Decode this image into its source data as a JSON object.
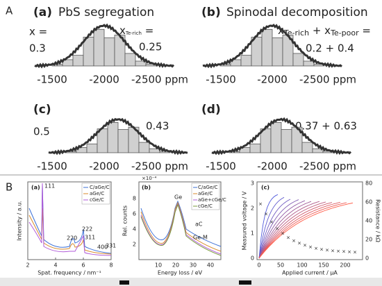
{
  "section_labels": [
    "A",
    "B"
  ],
  "hist_axis": [
    "-1500",
    "-2000",
    "-2500 ppm"
  ],
  "panel_a": {
    "label": "(a)",
    "title": "PbS segregation",
    "x_label": "x =",
    "x_value": "0.3",
    "te_x": "x",
    "te_sub": "Te-rich",
    "te_eq": " =",
    "te_value": "0.25"
  },
  "panel_b": {
    "label": "(b)",
    "title": "Spinodal decomposition",
    "x1": "x",
    "sub1": "Te-rich",
    "plus": " + x",
    "sub2": "Te-poor",
    "eq": " =",
    "value": "0.2 + 0.4"
  },
  "panel_c": {
    "label": "(c)",
    "left_value": "0.5",
    "right_value": "0.43"
  },
  "panel_d": {
    "label": "(d)",
    "value": "0.37 + 0.63"
  },
  "plot_a": {
    "label": "(a)",
    "ylabel": "Intensity / a.u.",
    "xlabel": "Spat. frequency / nm⁻¹",
    "xticks": [
      2,
      4,
      6,
      8
    ],
    "legend": [
      "C/aGe/C",
      "aGe/C",
      "cGe/C"
    ],
    "peaks": [
      "111",
      "220",
      "222",
      "311",
      "400",
      "331"
    ]
  },
  "plot_b": {
    "label": "(b)",
    "scale": "×10⁻⁴",
    "ylabel": "Rel. counts",
    "xlabel": "Energy loss / eV",
    "yticks": [
      2,
      4,
      6,
      8
    ],
    "xticks": [
      10,
      20,
      30,
      40
    ],
    "legend": [
      "C/aGe/C",
      "aGe/C",
      "aGe+cGe/C",
      "cGe/C"
    ],
    "notes": [
      "Ge",
      "aC",
      "Ge-M"
    ]
  },
  "plot_c": {
    "label": "(c)",
    "ylabel": "Measured voltage / V",
    "y2label": "Resistance / kΩ",
    "xlabel": "Applied current / μA",
    "yticks": [
      0,
      1,
      2,
      3
    ],
    "y2ticks": [
      0,
      20,
      40,
      60,
      80
    ],
    "xticks": [
      0,
      50,
      100,
      150,
      200
    ]
  }
}
